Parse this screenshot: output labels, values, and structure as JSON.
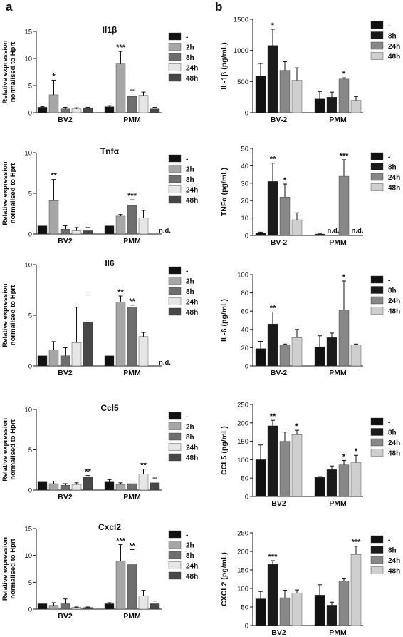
{
  "panel_labels": {
    "a": "a",
    "b": "b"
  },
  "colors": {
    "qpcr": {
      "-": "#111111",
      "2h": "#a6a6a6",
      "8h": "#6e6e6e",
      "24h": "#e6e6e6",
      "48h": "#474747"
    },
    "elisa": {
      "-": "#111111",
      "8h": "#1a1a1a",
      "24h": "#888888",
      "48h": "#cfcfcf"
    }
  },
  "chart_data": [
    {
      "type": "bar",
      "panel": "a",
      "title": "Il1β",
      "ylabel": "Relative expression normalised to Hprt",
      "ylim": [
        0,
        15
      ],
      "yticks": [
        0,
        5,
        10,
        15
      ],
      "categories": [
        "BV2",
        "PMM"
      ],
      "series": [
        {
          "name": "-",
          "values": [
            1.0,
            1.1
          ],
          "errors": [
            0.1,
            0.2
          ],
          "sig": [
            "",
            ""
          ]
        },
        {
          "name": "2h",
          "values": [
            3.3,
            9.0
          ],
          "errors": [
            2.7,
            2.3
          ],
          "sig": [
            "*",
            "***"
          ]
        },
        {
          "name": "8h",
          "values": [
            0.7,
            3.0
          ],
          "errors": [
            0.3,
            1.2
          ],
          "sig": [
            "",
            ""
          ]
        },
        {
          "name": "24h",
          "values": [
            0.7,
            3.2
          ],
          "errors": [
            0.2,
            0.6
          ],
          "sig": [
            "",
            ""
          ]
        },
        {
          "name": "48h",
          "values": [
            0.9,
            0.7
          ],
          "errors": [
            0.1,
            0.3
          ],
          "sig": [
            "",
            ""
          ]
        }
      ],
      "notes": [
        "",
        ""
      ]
    },
    {
      "type": "bar",
      "panel": "a",
      "title": "Tnfα",
      "ylabel": "Relative expression normalised to Hprt",
      "ylim": [
        0,
        10
      ],
      "yticks": [
        0,
        5,
        10
      ],
      "categories": [
        "BV2",
        "PMM"
      ],
      "series": [
        {
          "name": "-",
          "values": [
            1.0,
            1.0
          ],
          "errors": [
            0.0,
            0.0
          ],
          "sig": [
            "",
            ""
          ]
        },
        {
          "name": "2h",
          "values": [
            4.1,
            2.2
          ],
          "errors": [
            2.6,
            0.2
          ],
          "sig": [
            "**",
            ""
          ]
        },
        {
          "name": "8h",
          "values": [
            0.6,
            3.5
          ],
          "errors": [
            0.4,
            0.7
          ],
          "sig": [
            "",
            "***"
          ]
        },
        {
          "name": "24h",
          "values": [
            0.4,
            2.0
          ],
          "errors": [
            0.4,
            0.9
          ],
          "sig": [
            "",
            ""
          ]
        },
        {
          "name": "48h",
          "values": [
            0.4,
            null
          ],
          "errors": [
            0.4,
            null
          ],
          "sig": [
            "",
            ""
          ]
        }
      ],
      "notes": [
        "",
        "n.d."
      ]
    },
    {
      "type": "bar",
      "panel": "a",
      "title": "Il6",
      "ylabel": "Relative expression normalised to Hprt",
      "ylim": [
        0,
        10
      ],
      "yticks": [
        0,
        5,
        10
      ],
      "categories": [
        "BV2",
        "PMM"
      ],
      "series": [
        {
          "name": "-",
          "values": [
            1.0,
            1.0
          ],
          "errors": [
            0.0,
            0.0
          ],
          "sig": [
            "",
            ""
          ]
        },
        {
          "name": "2h",
          "values": [
            1.6,
            6.3
          ],
          "errors": [
            0.8,
            0.6
          ],
          "sig": [
            "",
            "**"
          ]
        },
        {
          "name": "8h",
          "values": [
            1.0,
            5.8
          ],
          "errors": [
            0.8,
            0.2
          ],
          "sig": [
            "",
            "**"
          ]
        },
        {
          "name": "24h",
          "values": [
            2.3,
            2.9
          ],
          "errors": [
            3.5,
            0.4
          ],
          "sig": [
            "",
            ""
          ]
        },
        {
          "name": "48h",
          "values": [
            4.3,
            null
          ],
          "errors": [
            2.7,
            null
          ],
          "sig": [
            "",
            ""
          ]
        }
      ],
      "notes": [
        "",
        "n.d."
      ]
    },
    {
      "type": "bar",
      "panel": "a",
      "title": "Ccl5",
      "ylabel": "Relative expression normalised to Hprt",
      "ylim": [
        0,
        10
      ],
      "yticks": [
        0,
        5,
        10
      ],
      "categories": [
        "BV2",
        "PMM"
      ],
      "series": [
        {
          "name": "-",
          "values": [
            1.0,
            1.0
          ],
          "errors": [
            0.0,
            0.3
          ],
          "sig": [
            "",
            ""
          ]
        },
        {
          "name": "2h",
          "values": [
            0.8,
            0.7
          ],
          "errors": [
            0.3,
            0.2
          ],
          "sig": [
            "",
            ""
          ]
        },
        {
          "name": "8h",
          "values": [
            0.6,
            0.8
          ],
          "errors": [
            0.2,
            0.3
          ],
          "sig": [
            "",
            ""
          ]
        },
        {
          "name": "24h",
          "values": [
            0.7,
            2.0
          ],
          "errors": [
            0.2,
            0.6
          ],
          "sig": [
            "",
            "**"
          ]
        },
        {
          "name": "48h",
          "values": [
            1.6,
            0.9
          ],
          "errors": [
            0.2,
            0.6
          ],
          "sig": [
            "**",
            ""
          ]
        }
      ],
      "notes": [
        "",
        ""
      ]
    },
    {
      "type": "bar",
      "panel": "a",
      "title": "Cxcl2",
      "ylabel": "Relative expression normalised to Hprt",
      "ylim": [
        0,
        15
      ],
      "yticks": [
        0,
        5,
        10,
        15
      ],
      "categories": [
        "BV2",
        "PMM"
      ],
      "series": [
        {
          "name": "-",
          "values": [
            1.0,
            1.0
          ],
          "errors": [
            0.0,
            0.2
          ],
          "sig": [
            "",
            ""
          ]
        },
        {
          "name": "2h",
          "values": [
            0.7,
            9.0
          ],
          "errors": [
            0.5,
            3.0
          ],
          "sig": [
            "",
            "***"
          ]
        },
        {
          "name": "8h",
          "values": [
            1.0,
            8.3
          ],
          "errors": [
            0.9,
            2.8
          ],
          "sig": [
            "",
            "**"
          ]
        },
        {
          "name": "24h",
          "values": [
            0.3,
            2.5
          ],
          "errors": [
            0.1,
            1.0
          ],
          "sig": [
            "",
            ""
          ]
        },
        {
          "name": "48h",
          "values": [
            0.3,
            1.0
          ],
          "errors": [
            0.1,
            0.5
          ],
          "sig": [
            "",
            ""
          ]
        }
      ],
      "notes": [
        "",
        ""
      ]
    },
    {
      "type": "bar",
      "panel": "b",
      "ylabel": "IL-1β (pg/mL)",
      "ylim": [
        0,
        1500
      ],
      "yticks": [
        0,
        500,
        1000,
        1500
      ],
      "categories": [
        "BV-2",
        "PMM"
      ],
      "series": [
        {
          "name": "-",
          "values": [
            590,
            220
          ],
          "errors": [
            200,
            120
          ],
          "sig": [
            "",
            ""
          ]
        },
        {
          "name": "8h",
          "values": [
            1080,
            250
          ],
          "errors": [
            260,
            80
          ],
          "sig": [
            "*",
            ""
          ]
        },
        {
          "name": "24h",
          "values": [
            680,
            540
          ],
          "errors": [
            140,
            20
          ],
          "sig": [
            "",
            "*"
          ]
        },
        {
          "name": "48h",
          "values": [
            520,
            200
          ],
          "errors": [
            200,
            60
          ],
          "sig": [
            "",
            ""
          ]
        }
      ],
      "notes": [
        "",
        ""
      ]
    },
    {
      "type": "bar",
      "panel": "b",
      "ylabel": "TNFα (pg/mL)",
      "ylim": [
        0,
        50
      ],
      "yticks": [
        0,
        10,
        20,
        30,
        40,
        50
      ],
      "categories": [
        "BV-2",
        "PMM"
      ],
      "series": [
        {
          "name": "-",
          "values": [
            1.5,
            0.8
          ],
          "errors": [
            0.4,
            0.1
          ],
          "sig": [
            "",
            ""
          ]
        },
        {
          "name": "8h",
          "values": [
            31,
            null
          ],
          "errors": [
            10.5,
            null
          ],
          "sig": [
            "**",
            ""
          ]
        },
        {
          "name": "24h",
          "values": [
            22,
            34
          ],
          "errors": [
            7.5,
            9.5
          ],
          "sig": [
            "*",
            "***"
          ]
        },
        {
          "name": "48h",
          "values": [
            9,
            null
          ],
          "errors": [
            4,
            null
          ],
          "sig": [
            "",
            ""
          ]
        }
      ],
      "na": [
        [],
        [
          "n.d.",
          "",
          "n.d."
        ]
      ]
    },
    {
      "type": "bar",
      "panel": "b",
      "ylabel": "IL-6 (pg/mL)",
      "ylim": [
        0,
        100
      ],
      "yticks": [
        0,
        20,
        40,
        60,
        80,
        100
      ],
      "categories": [
        "BV-2",
        "PMM"
      ],
      "series": [
        {
          "name": "-",
          "values": [
            19,
            21
          ],
          "errors": [
            8,
            12
          ],
          "sig": [
            "",
            ""
          ]
        },
        {
          "name": "8h",
          "values": [
            46,
            31
          ],
          "errors": [
            13,
            5
          ],
          "sig": [
            "**",
            ""
          ]
        },
        {
          "name": "24h",
          "values": [
            23,
            61
          ],
          "errors": [
            1,
            32
          ],
          "sig": [
            "",
            "*"
          ]
        },
        {
          "name": "48h",
          "values": [
            31,
            23
          ],
          "errors": [
            9,
            1
          ],
          "sig": [
            "",
            ""
          ]
        }
      ],
      "notes": [
        "",
        ""
      ]
    },
    {
      "type": "bar",
      "panel": "b",
      "ylabel": "CCL5 (pg/mL)",
      "ylim": [
        0,
        250
      ],
      "yticks": [
        0,
        50,
        100,
        150,
        200,
        250
      ],
      "categories": [
        "BV2",
        "PMM"
      ],
      "series": [
        {
          "name": "-",
          "values": [
            100,
            52
          ],
          "errors": [
            40,
            2
          ],
          "sig": [
            "",
            ""
          ]
        },
        {
          "name": "8h",
          "values": [
            192,
            73
          ],
          "errors": [
            15,
            10
          ],
          "sig": [
            "**",
            ""
          ]
        },
        {
          "name": "24h",
          "values": [
            150,
            86
          ],
          "errors": [
            25,
            12
          ],
          "sig": [
            "",
            "*"
          ]
        },
        {
          "name": "48h",
          "values": [
            168,
            92
          ],
          "errors": [
            12,
            20
          ],
          "sig": [
            "*",
            "*"
          ]
        }
      ],
      "notes": [
        "",
        ""
      ]
    },
    {
      "type": "bar",
      "panel": "b",
      "ylabel": "CXCL2 (pg/mL)",
      "ylim": [
        0,
        250
      ],
      "yticks": [
        0,
        50,
        100,
        150,
        200,
        250
      ],
      "categories": [
        "BV2",
        "PMM"
      ],
      "series": [
        {
          "name": "-",
          "values": [
            72,
            82
          ],
          "errors": [
            20,
            28
          ],
          "sig": [
            "",
            ""
          ]
        },
        {
          "name": "8h",
          "values": [
            165,
            55
          ],
          "errors": [
            10,
            8
          ],
          "sig": [
            "***",
            ""
          ]
        },
        {
          "name": "24h",
          "values": [
            75,
            120
          ],
          "errors": [
            20,
            8
          ],
          "sig": [
            "",
            ""
          ]
        },
        {
          "name": "48h",
          "values": [
            88,
            192
          ],
          "errors": [
            8,
            22
          ],
          "sig": [
            "",
            "***"
          ]
        }
      ],
      "notes": [
        "",
        ""
      ]
    }
  ]
}
